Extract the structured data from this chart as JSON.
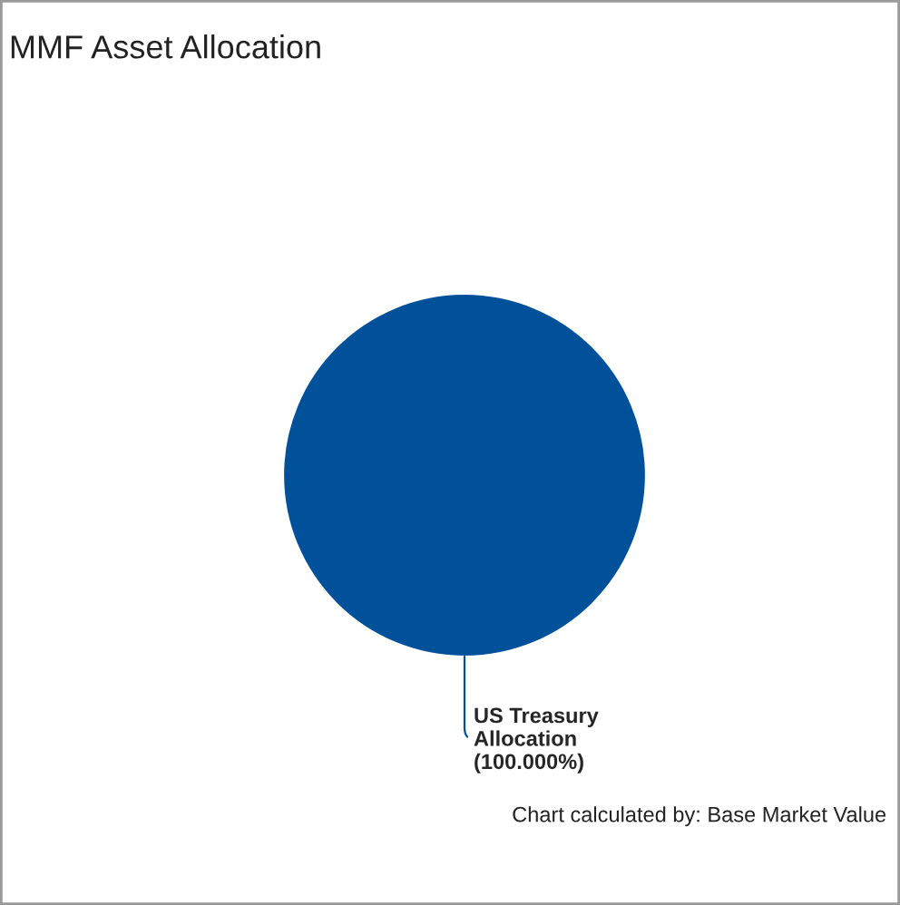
{
  "chart_data": {
    "type": "pie",
    "title": "MMF Asset Allocation",
    "categories": [
      "US Treasury Allocation"
    ],
    "values": [
      100
    ],
    "colors": [
      "#00509a"
    ],
    "value_labels": [
      "(100.000%)"
    ],
    "annotations": [
      "Chart calculated by: Base Market Value"
    ]
  }
}
